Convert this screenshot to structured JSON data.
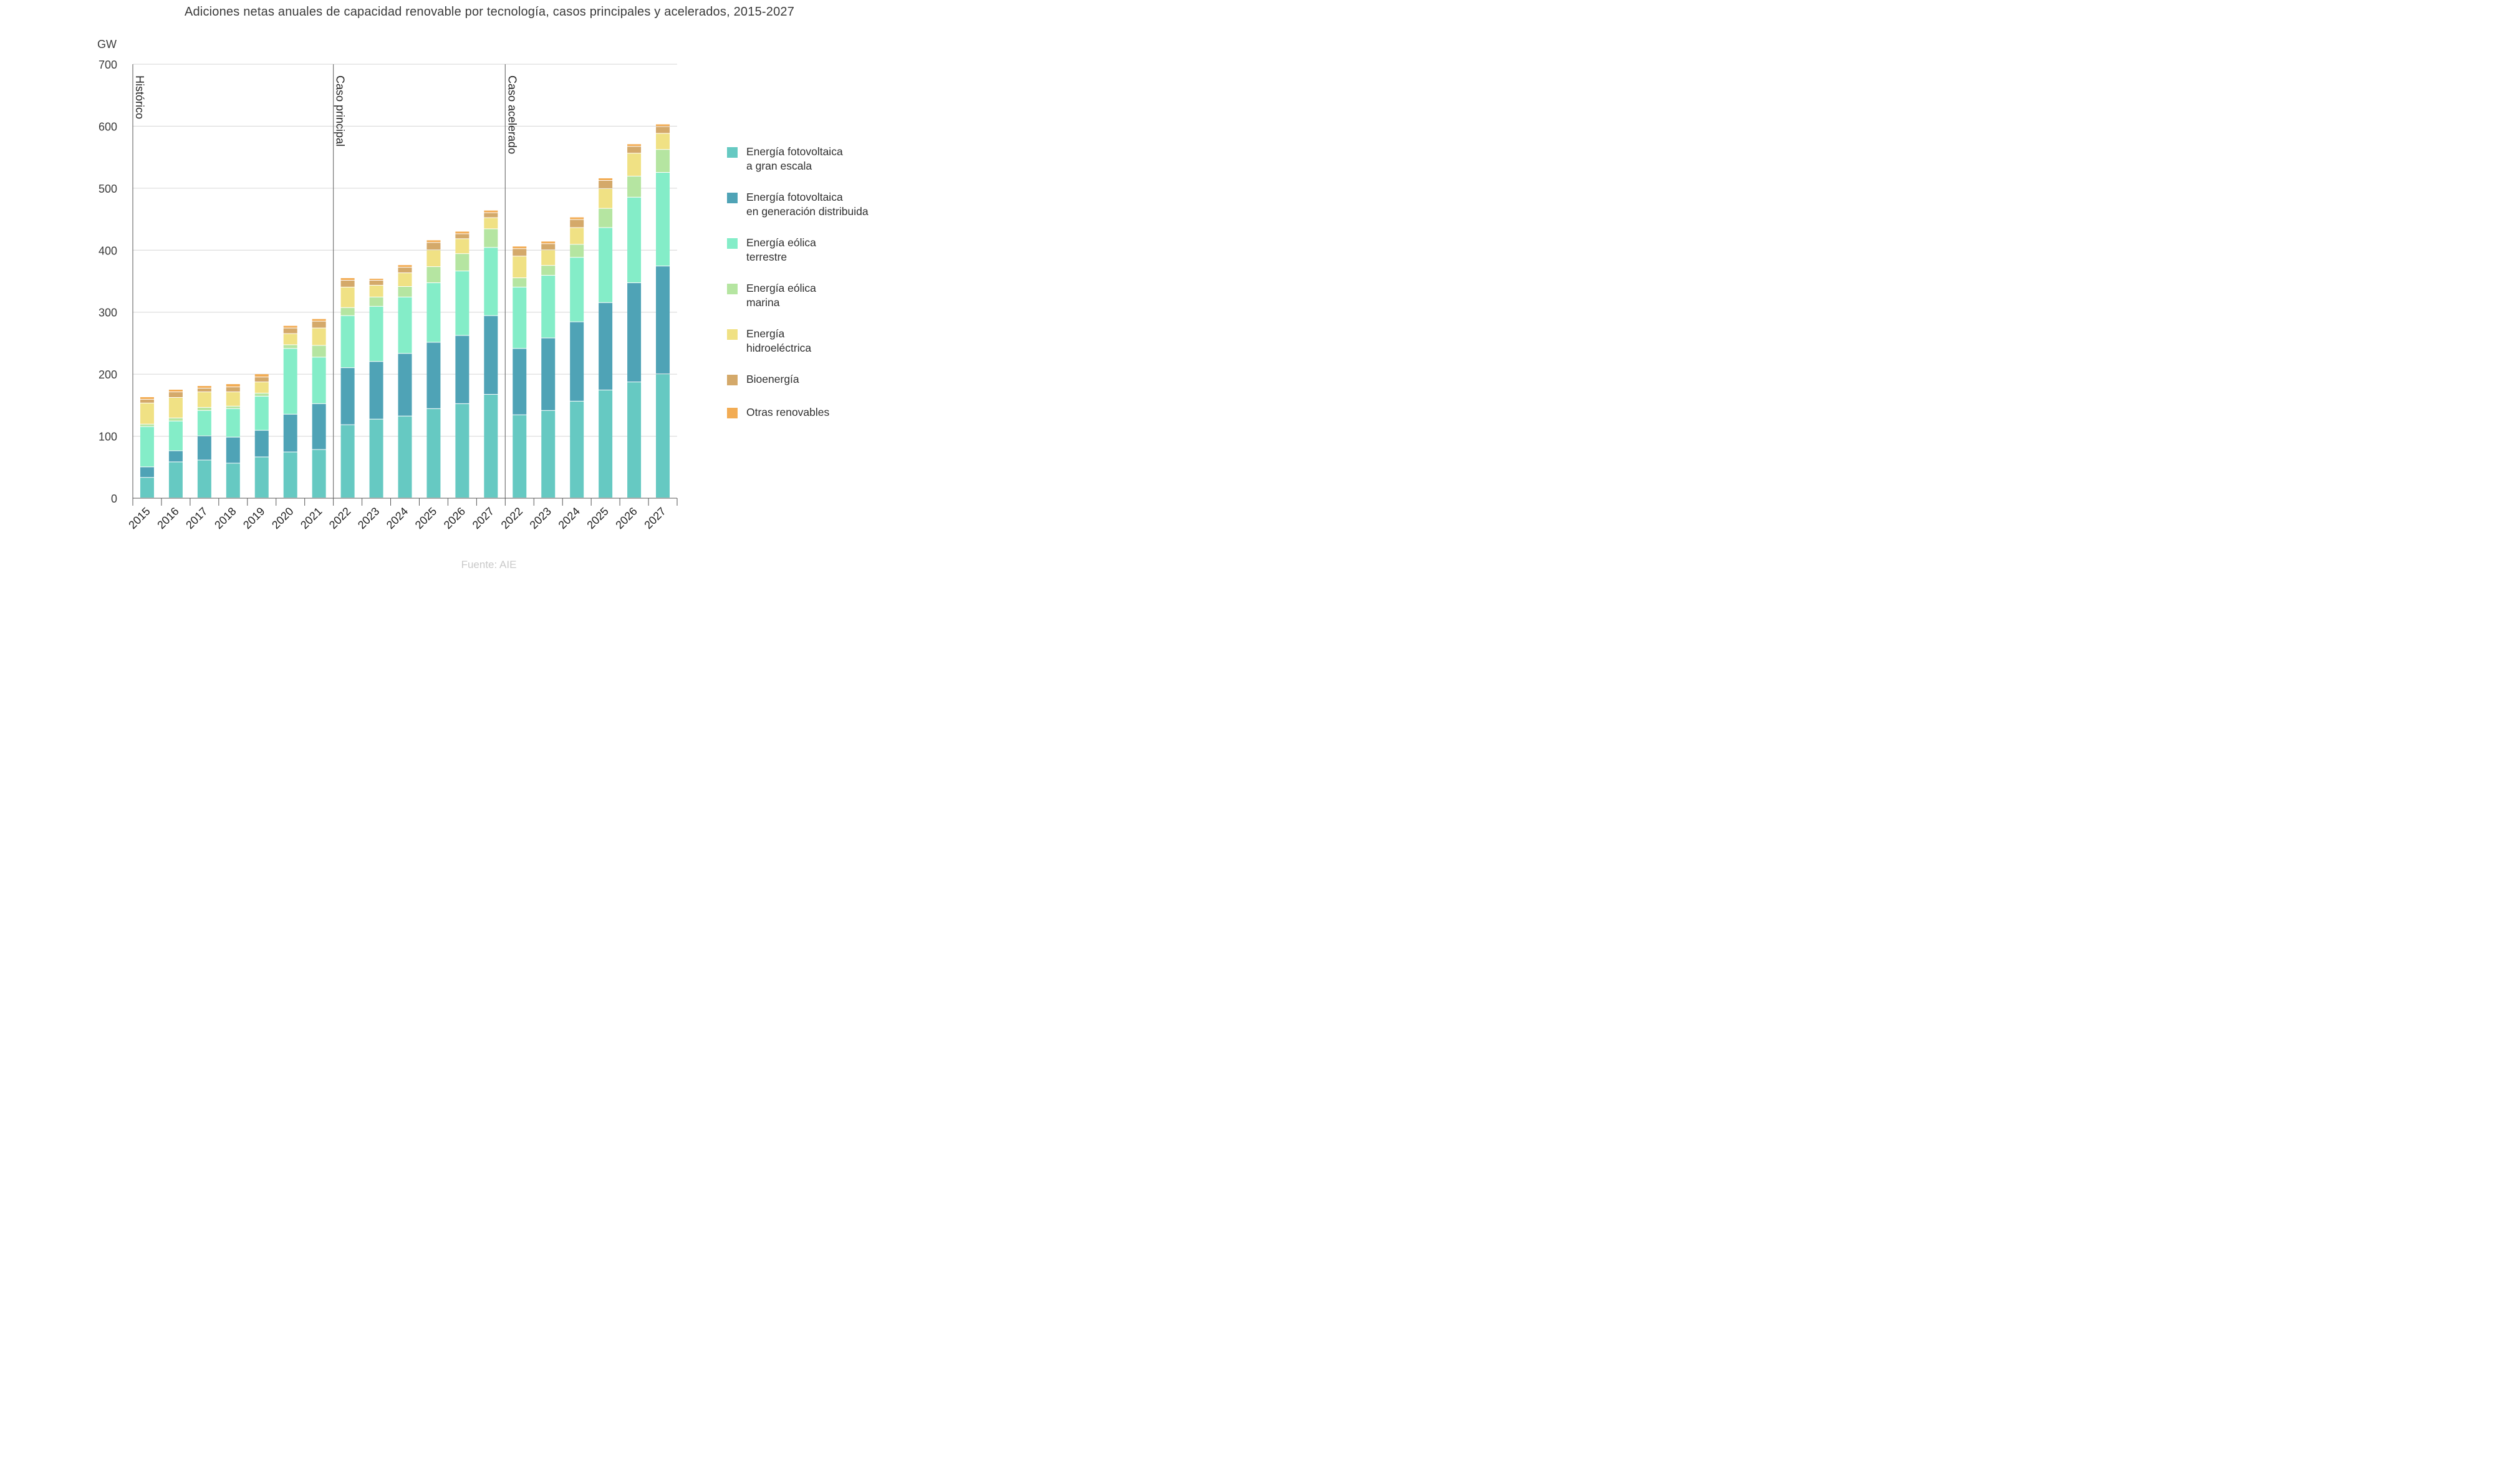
{
  "chart_data": {
    "type": "bar",
    "stacked": true,
    "title": "Adiciones netas anuales de capacidad renovable por tecnología, casos principales y acelerados, 2015-2027",
    "ylabel": "GW",
    "ylim": [
      0,
      700
    ],
    "yticks": [
      0,
      100,
      200,
      300,
      400,
      500,
      600,
      700
    ],
    "grid": true,
    "legend_position": "right",
    "categories": [
      "2015",
      "2016",
      "2017",
      "2018",
      "2019",
      "2020",
      "2021",
      "2022",
      "2023",
      "2024",
      "2025",
      "2026",
      "2027",
      "2022",
      "2023",
      "2024",
      "2025",
      "2026",
      "2027"
    ],
    "groups": [
      {
        "label": "Histórico",
        "start": 0,
        "end": 6
      },
      {
        "label": "Caso principal",
        "start": 7,
        "end": 12
      },
      {
        "label": "Caso acelerado",
        "start": 13,
        "end": 18
      }
    ],
    "series": [
      {
        "name": "Energía fotovoltaica\na gran escala",
        "color": "#66c9c2",
        "values": [
          33,
          58,
          61,
          56,
          66,
          74,
          78,
          118,
          127,
          132,
          144,
          152,
          167,
          134,
          141,
          156,
          174,
          187,
          200
        ]
      },
      {
        "name": "Energía fotovoltaica\nen generación distribuida",
        "color": "#4fa3b6",
        "values": [
          17,
          18,
          39,
          42,
          43,
          61,
          74,
          92,
          93,
          101,
          107,
          110,
          127,
          107,
          117,
          128,
          141,
          160,
          174
        ]
      },
      {
        "name": "Energía eólica\nterrestre",
        "color": "#84edc8",
        "values": [
          65,
          48,
          41,
          46,
          55,
          106,
          75,
          84,
          89,
          91,
          96,
          104,
          110,
          99,
          101,
          104,
          121,
          138,
          151
        ]
      },
      {
        "name": "Energía eólica\nmarina",
        "color": "#b5e5a1",
        "values": [
          4,
          5,
          5,
          4,
          5,
          6,
          19,
          13,
          15,
          17,
          26,
          28,
          30,
          15,
          16,
          21,
          31,
          34,
          37
        ]
      },
      {
        "name": "Energía\nhidroeléctrica",
        "color": "#f0e184",
        "values": [
          34,
          33,
          25,
          23,
          18,
          18,
          28,
          33,
          19,
          22,
          27,
          24,
          18,
          35,
          25,
          27,
          32,
          37,
          26
        ]
      },
      {
        "name": "Bioenergía",
        "color": "#d4a96a",
        "values": [
          6,
          9,
          6,
          8,
          8,
          9,
          11,
          11,
          8,
          9,
          12,
          8,
          8,
          12,
          10,
          13,
          13,
          11,
          11
        ]
      },
      {
        "name": "Otras renovables",
        "color": "#f2ac54",
        "values": [
          4,
          4,
          4,
          5,
          5,
          4,
          4,
          4,
          3,
          4,
          4,
          4,
          4,
          4,
          4,
          4,
          4,
          4,
          4
        ]
      }
    ]
  },
  "source": "Fuente: AIE"
}
